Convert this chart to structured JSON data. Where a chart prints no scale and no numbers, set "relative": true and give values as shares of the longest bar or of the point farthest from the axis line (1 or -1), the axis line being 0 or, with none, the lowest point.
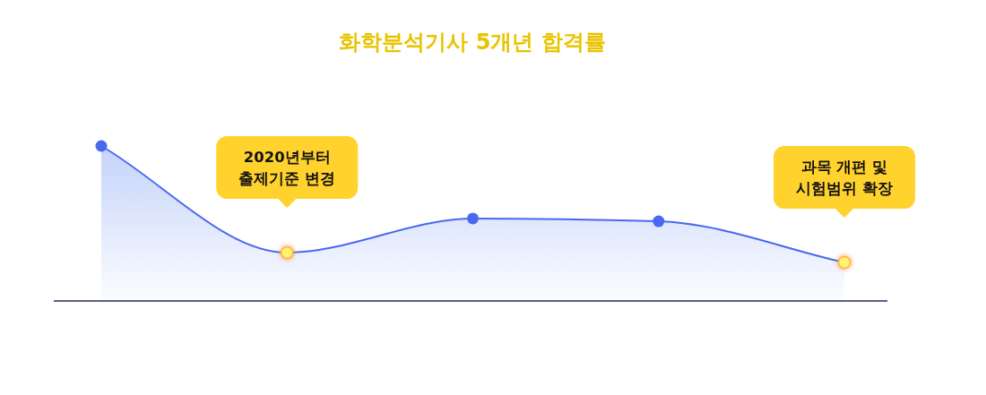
{
  "chart_data": {
    "type": "area",
    "title": "화학분석기사 5개년 합격률",
    "relative": true,
    "marker": "circle",
    "categories": [
      null,
      null,
      null,
      null,
      null
    ],
    "series": [
      {
        "color": "#4a68ee",
        "colors": [
          "#4a68ee",
          "#fff36e",
          "#4a68ee",
          "#4a68ee",
          "#fff36e"
        ],
        "values": [
          1,
          0.312,
          0.532,
          0.514,
          0.249
        ]
      }
    ],
    "annotations": [
      "2020년부터\n출제기준 변경",
      "과목 개편 및\n시험범위 확장"
    ]
  }
}
